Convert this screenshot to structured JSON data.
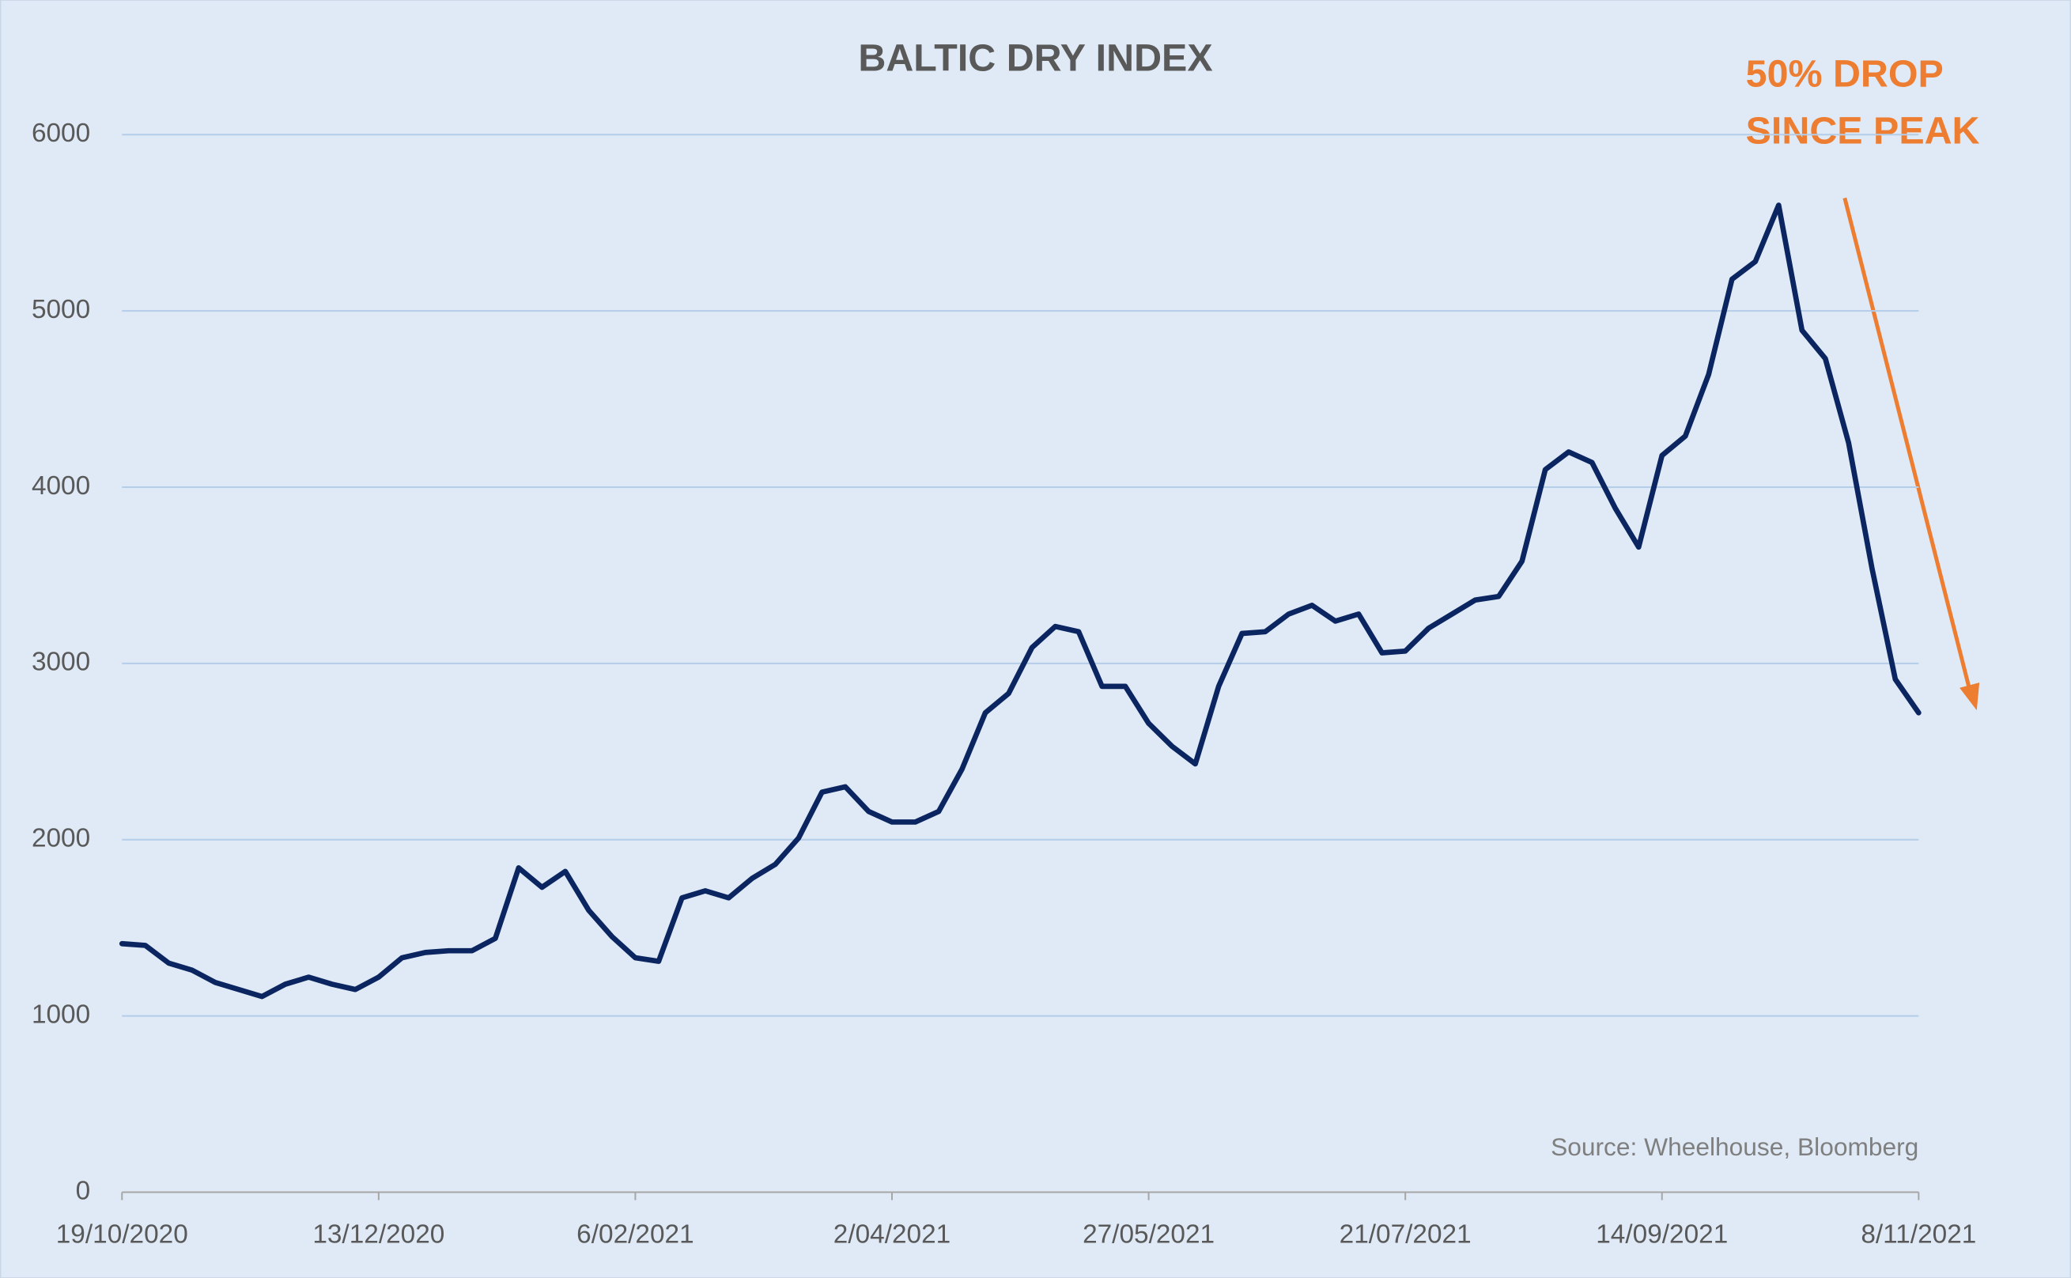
{
  "chart_data": {
    "type": "line",
    "title": "BALTIC DRY INDEX",
    "annotation": [
      "50% DROP",
      "SINCE PEAK"
    ],
    "source": "Source: Wheelhouse, Bloomberg",
    "categories": [
      "19/10/2020",
      null,
      null,
      null,
      null,
      null,
      null,
      null,
      null,
      null,
      null,
      "13/12/2020",
      null,
      null,
      null,
      null,
      null,
      null,
      null,
      null,
      null,
      null,
      "6/02/2021",
      null,
      null,
      null,
      null,
      null,
      null,
      null,
      null,
      null,
      null,
      "2/04/2021",
      null,
      null,
      null,
      null,
      null,
      null,
      null,
      null,
      null,
      null,
      "27/05/2021",
      null,
      null,
      null,
      null,
      null,
      null,
      null,
      null,
      null,
      null,
      "21/07/2021",
      null,
      null,
      null,
      null,
      null,
      null,
      null,
      null,
      null,
      null,
      "14/09/2021",
      null,
      null,
      null,
      null,
      null,
      null,
      null,
      null,
      null,
      null,
      "8/11/2021"
    ],
    "series": [
      {
        "name": "Baltic Dry Index",
        "color": "#0b2561",
        "values": [
          1410,
          1400,
          1300,
          1260,
          1190,
          1150,
          1110,
          1180,
          1220,
          1180,
          1150,
          1220,
          1330,
          1360,
          1370,
          1370,
          1440,
          1840,
          1730,
          1820,
          1600,
          1450,
          1330,
          1310,
          1670,
          1710,
          1670,
          1780,
          1860,
          2010,
          2270,
          2300,
          2160,
          2100,
          2100,
          2160,
          2400,
          2720,
          2830,
          3090,
          3210,
          3180,
          2870,
          2870,
          2660,
          2530,
          2430,
          2870,
          3170,
          3180,
          3280,
          3330,
          3240,
          3280,
          3060,
          3070,
          3200,
          3280,
          3360,
          3380,
          3580,
          4100,
          4200,
          4140,
          3880,
          3660,
          4180,
          4290,
          4640,
          5180,
          5280,
          5600,
          4890,
          4730,
          4250,
          3540,
          2910,
          2720
        ]
      }
    ],
    "ylim": [
      0,
      6000
    ],
    "yticks": [
      0,
      1000,
      2000,
      3000,
      4000,
      5000,
      6000
    ],
    "grid": true
  }
}
